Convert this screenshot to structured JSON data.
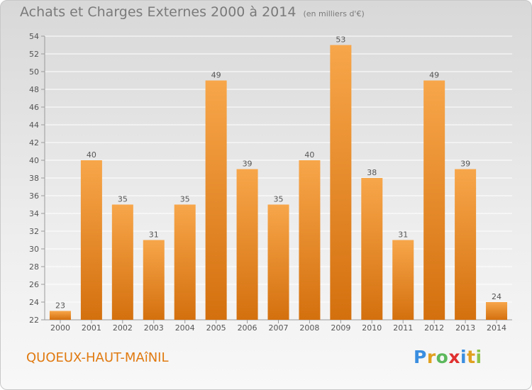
{
  "header": {
    "title": "Achats et Charges Externes 2000 à 2014",
    "unit": "(en milliers d'€)"
  },
  "footer": {
    "place": "QUOEUX-HAUT-MAîNIL",
    "logo": "Proxiti"
  },
  "colors": {
    "bar_light": "#f7a64a",
    "bar_dark": "#d4700e",
    "title": "#7a7a7a",
    "place": "#e07a10"
  },
  "chart_data": {
    "type": "bar",
    "title": "Achats et Charges Externes 2000 à 2014",
    "subtitle": "(en milliers d'€)",
    "categories": [
      "2000",
      "2001",
      "2002",
      "2003",
      "2004",
      "2005",
      "2006",
      "2007",
      "2008",
      "2009",
      "2010",
      "2011",
      "2012",
      "2013",
      "2014"
    ],
    "values": [
      23,
      40,
      35,
      31,
      35,
      49,
      39,
      35,
      40,
      53,
      38,
      31,
      49,
      39,
      24
    ],
    "ylim": [
      22,
      54
    ],
    "yticks": [
      22,
      24,
      26,
      28,
      30,
      32,
      34,
      36,
      38,
      40,
      42,
      44,
      46,
      48,
      50,
      52,
      54
    ],
    "grid": true,
    "legend": "none",
    "xlabel": "",
    "ylabel": ""
  }
}
